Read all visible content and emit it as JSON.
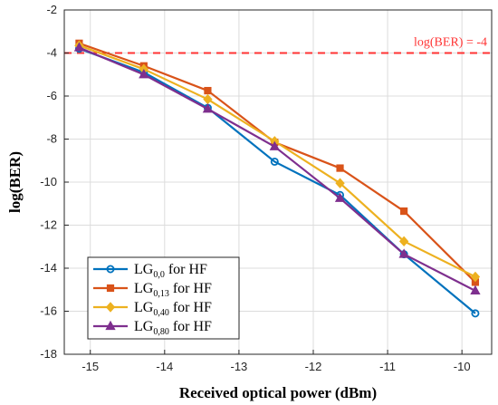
{
  "chart_data": {
    "type": "line",
    "xlabel": "Received optical power (dBm)",
    "ylabel": "log(BER)",
    "xlim": [
      -15.35,
      -9.6
    ],
    "ylim": [
      -18,
      -2
    ],
    "xticks": [
      -15,
      -14,
      -13,
      -12,
      -11,
      -10
    ],
    "yticks": [
      -2,
      -4,
      -6,
      -8,
      -10,
      -12,
      -14,
      -16,
      -18
    ],
    "grid": true,
    "legend_position": "bottom-left",
    "threshold": {
      "y": -4,
      "label": "log(BER) = -4",
      "color": "#ff3333",
      "style": "dashed"
    },
    "x": [
      -15.15,
      -14.28,
      -13.42,
      -12.52,
      -11.64,
      -10.78,
      -9.82
    ],
    "series": [
      {
        "name_main": "LG",
        "name_sub": "0,0",
        "name_suffix": " for HF",
        "color": "#0072bd",
        "marker": "circle",
        "values": [
          -3.8,
          -4.9,
          -6.55,
          -9.05,
          -10.6,
          -13.35,
          -16.1
        ]
      },
      {
        "name_main": "LG",
        "name_sub": "0,13",
        "name_suffix": " for HF",
        "color": "#d95319",
        "marker": "square",
        "values": [
          -3.55,
          -4.6,
          -5.75,
          -8.15,
          -9.35,
          -11.35,
          -14.65
        ]
      },
      {
        "name_main": "LG",
        "name_sub": "0,40",
        "name_suffix": " for HF",
        "color": "#edb120",
        "marker": "diamond",
        "values": [
          -3.65,
          -4.75,
          -6.15,
          -8.1,
          -10.05,
          -12.75,
          -14.4
        ]
      },
      {
        "name_main": "LG",
        "name_sub": "0,80",
        "name_suffix": " for HF",
        "color": "#7e2f8e",
        "marker": "triangle",
        "values": [
          -3.75,
          -5.0,
          -6.6,
          -8.35,
          -10.75,
          -13.35,
          -15.05
        ]
      }
    ]
  }
}
